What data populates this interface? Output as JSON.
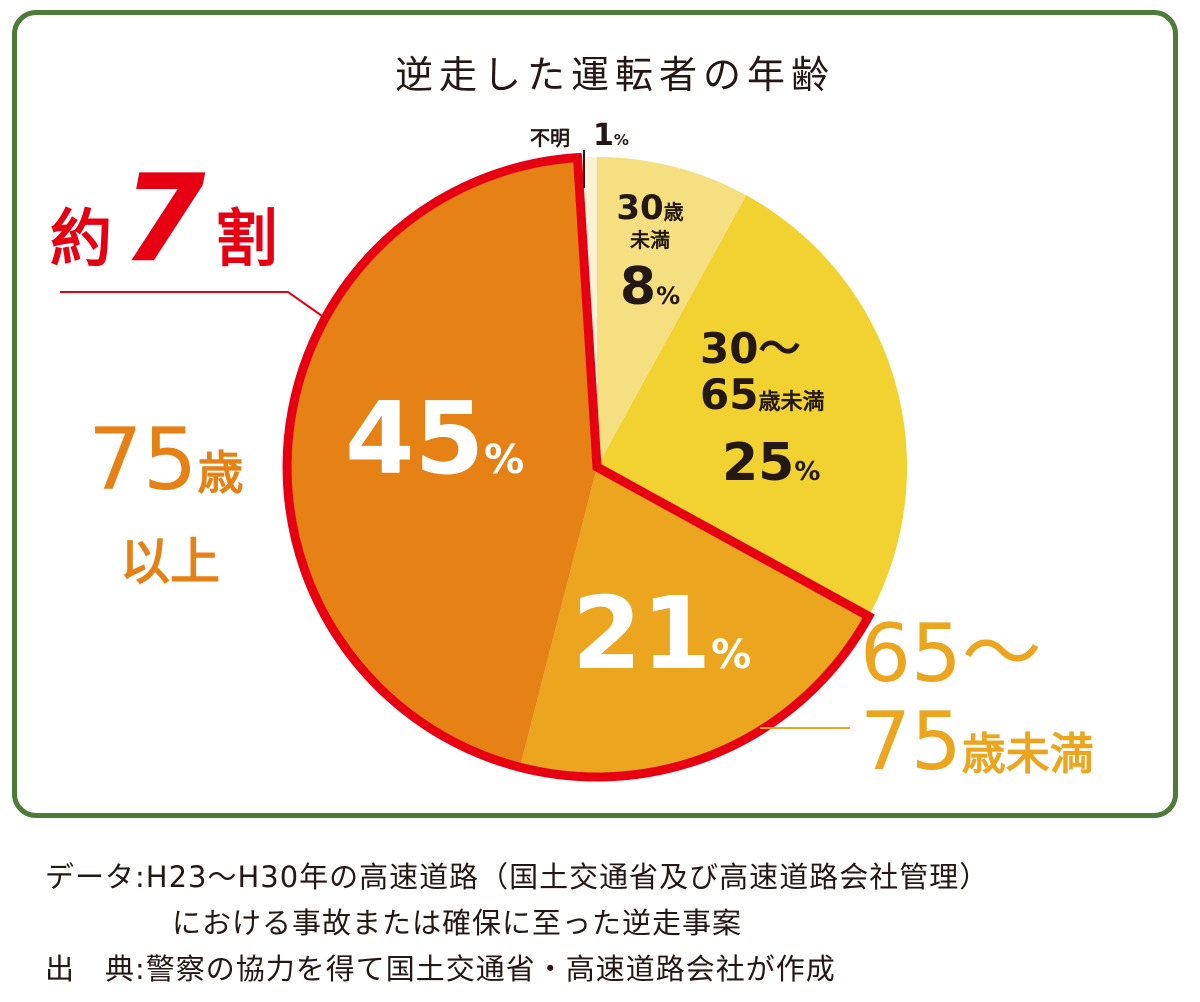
{
  "chart_data": {
    "type": "pie",
    "title": "逆走した運転者の年齢",
    "start": "top",
    "direction": "clockwise",
    "slices": [
      {
        "label": "30歳未満",
        "value": 8,
        "color": "#f5df80"
      },
      {
        "label": "30〜65歳未満",
        "value": 25,
        "color": "#f2d230"
      },
      {
        "label": "65〜75歳未満",
        "value": 21,
        "color": "#eca51f"
      },
      {
        "label": "75歳以上",
        "value": 45,
        "color": "#e58115"
      },
      {
        "label": "不明",
        "value": 1,
        "color": "#fbf2d5"
      }
    ],
    "highlight": {
      "text_prefix": "約",
      "text_num": "7",
      "text_suffix": "割",
      "slices": [
        "65〜75歳未満",
        "75歳以上"
      ],
      "color": "#e60012"
    }
  },
  "labels": {
    "unknown": {
      "name": "不明",
      "num": "1",
      "pct": "%"
    },
    "under30": {
      "l1": "30",
      "l1b": "歳",
      "l2": "未満",
      "num": "8",
      "pct": "%"
    },
    "mid": {
      "l1": "30〜",
      "l2": "65",
      "l2b": "歳未満",
      "num": "25",
      "pct": "%"
    },
    "s6575": {
      "num": "21",
      "pct": "%",
      "l1": "65〜",
      "l2": "75",
      "l2b": "歳未満"
    },
    "over75": {
      "num": "45",
      "pct": "%",
      "l1": "75",
      "l1b": "歳",
      "l2": "以上"
    }
  },
  "footer": {
    "line1": "データ:H23〜H30年の高速道路（国土交通省及び高速道路会社管理）",
    "line2": "における事故または確保に至った逆走事案",
    "line3": "出　典:警察の協力を得て国土交通省・高速道路会社が作成"
  }
}
